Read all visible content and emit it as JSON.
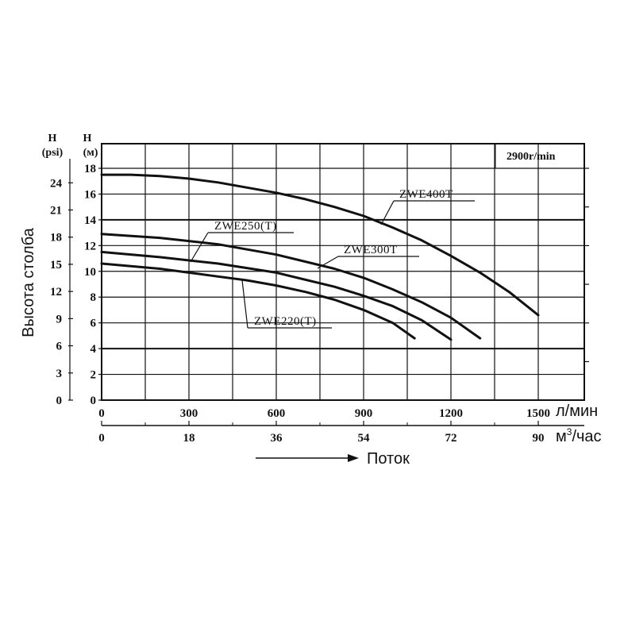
{
  "chart_data": {
    "type": "line",
    "speed_label": "2900r/min",
    "y_axis_m": {
      "header_top": "H",
      "header_unit": "(м)",
      "ticks": [
        "0",
        "2",
        "4",
        "6",
        "8",
        "10",
        "12",
        "14",
        "16",
        "18"
      ],
      "ylim": [
        0,
        18
      ]
    },
    "y_axis_psi": {
      "header_top": "H",
      "header_unit": "(psi)",
      "ticks": [
        "0",
        "3",
        "6",
        "9",
        "12",
        "15",
        "18",
        "21",
        "24"
      ]
    },
    "x_axis_lpm": {
      "ticks": [
        "0",
        "300",
        "600",
        "900",
        "1200",
        "1500"
      ],
      "unit": "л/мин",
      "xlim": [
        0,
        1500
      ]
    },
    "x_axis_m3h": {
      "ticks": [
        "0",
        "18",
        "36",
        "54",
        "72",
        "90"
      ],
      "unit_prefix": "м",
      "unit_sup": "3",
      "unit_suffix": "/час"
    },
    "ylabel": "Высота столба",
    "xlabel": "Поток",
    "series": [
      {
        "name": "ZWE400T",
        "x": [
          0,
          100,
          200,
          300,
          400,
          500,
          600,
          700,
          800,
          900,
          1000,
          1100,
          1200,
          1300,
          1400,
          1500
        ],
        "y": [
          17.5,
          17.5,
          17.4,
          17.2,
          16.9,
          16.5,
          16.1,
          15.6,
          15.0,
          14.3,
          13.4,
          12.4,
          11.2,
          9.9,
          8.4,
          6.6
        ]
      },
      {
        "name": "ZWE300T",
        "x": [
          0,
          200,
          400,
          600,
          800,
          900,
          1000,
          1100,
          1200,
          1300
        ],
        "y": [
          12.9,
          12.6,
          12.1,
          11.3,
          10.2,
          9.5,
          8.6,
          7.6,
          6.4,
          4.8
        ]
      },
      {
        "name": "ZWE250(T)",
        "x": [
          0,
          200,
          400,
          600,
          800,
          900,
          1000,
          1100,
          1200
        ],
        "y": [
          11.5,
          11.1,
          10.6,
          9.9,
          8.8,
          8.1,
          7.3,
          6.2,
          4.7
        ]
      },
      {
        "name": "ZWE220(T)",
        "x": [
          0,
          100,
          200,
          300,
          400,
          500,
          600,
          700,
          800,
          900,
          1000,
          1075
        ],
        "y": [
          10.6,
          10.4,
          10.2,
          9.9,
          9.6,
          9.3,
          8.9,
          8.4,
          7.8,
          7.0,
          6.0,
          4.8
        ]
      }
    ],
    "grid": true
  }
}
